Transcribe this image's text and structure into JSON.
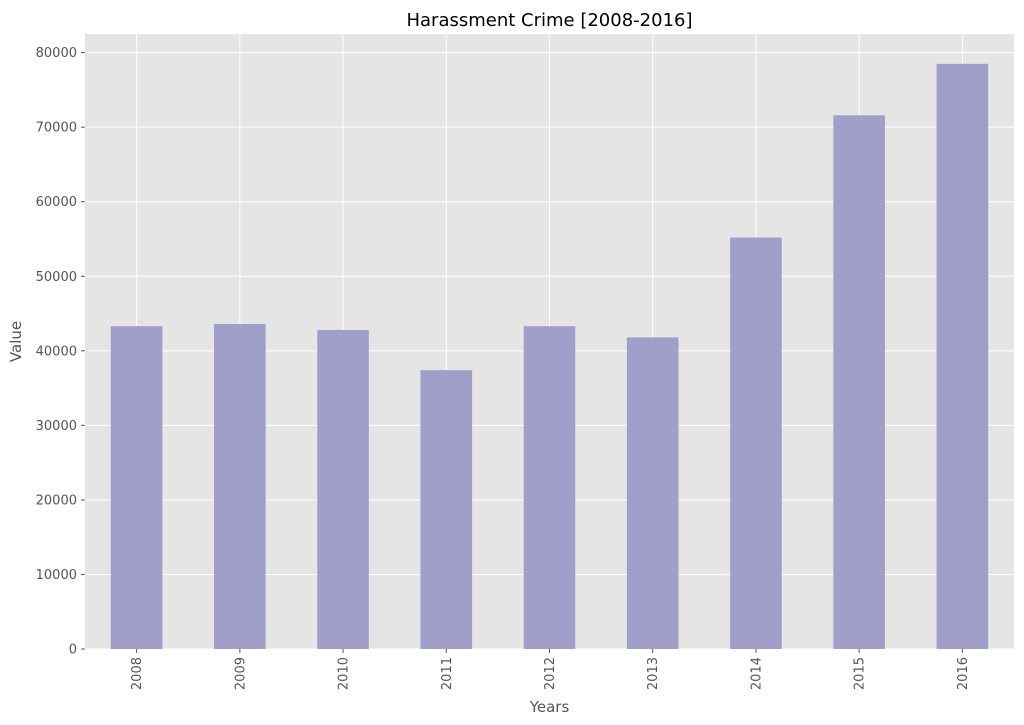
{
  "chart_data": {
    "type": "bar",
    "title": "Harassment Crime [2008-2016]",
    "xlabel": "Years",
    "ylabel": "Value",
    "categories": [
      "2008",
      "2009",
      "2010",
      "2011",
      "2012",
      "2013",
      "2014",
      "2015",
      "2016"
    ],
    "values": [
      43300,
      43600,
      42800,
      37400,
      43300,
      41800,
      55200,
      71600,
      78500
    ],
    "ylim": [
      0,
      82500
    ],
    "yticks": [
      0,
      10000,
      20000,
      30000,
      40000,
      50000,
      60000,
      70000,
      80000
    ],
    "ytick_labels": [
      "0",
      "10000",
      "20000",
      "30000",
      "40000",
      "50000",
      "60000",
      "70000",
      "80000"
    ],
    "grid": true,
    "legend": "none",
    "colors": {
      "bar": "#a09fc9",
      "background": "#e5e5e5",
      "grid": "#ffffff",
      "text": "#555555",
      "title": "#000000"
    }
  }
}
